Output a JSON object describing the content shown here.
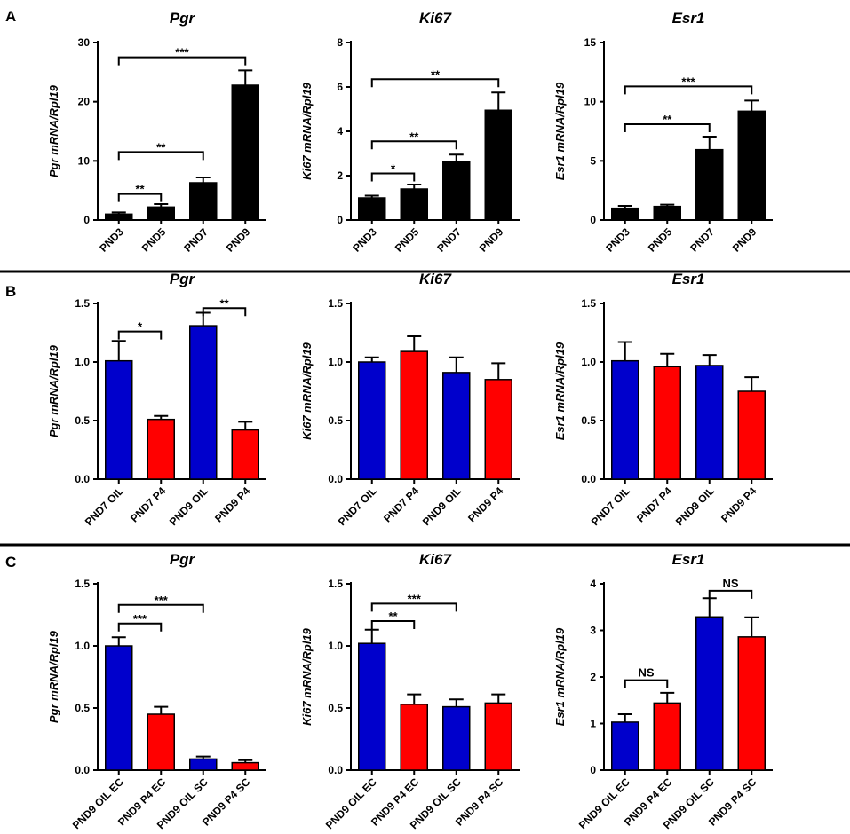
{
  "panels": [
    {
      "id": "A",
      "label": "A"
    },
    {
      "id": "B",
      "label": "B"
    },
    {
      "id": "C",
      "label": "C"
    }
  ],
  "chart_data": [
    {
      "type": "bar",
      "panel": "A",
      "title": "Pgr",
      "ylabel": "Pgr mRNA/Rpl19",
      "ylim": [
        0,
        30
      ],
      "yticks": [
        0,
        10,
        20,
        30
      ],
      "categories": [
        "PND3",
        "PND5",
        "PND7",
        "PND9"
      ],
      "values": [
        1.0,
        2.2,
        6.3,
        22.8
      ],
      "errors": [
        0.3,
        0.5,
        0.9,
        2.5
      ],
      "colors": [
        "#000000",
        "#000000",
        "#000000",
        "#000000"
      ],
      "significance": [
        {
          "from": 0,
          "to": 1,
          "label": "**",
          "y": 4.4
        },
        {
          "from": 0,
          "to": 2,
          "label": "**",
          "y": 11.5
        },
        {
          "from": 0,
          "to": 3,
          "label": "***",
          "y": 27.5
        }
      ]
    },
    {
      "type": "bar",
      "panel": "A",
      "title": "Ki67",
      "ylabel": "Ki67 mRNA/Rpl19",
      "ylim": [
        0,
        8
      ],
      "yticks": [
        0,
        2,
        4,
        6,
        8
      ],
      "categories": [
        "PND3",
        "PND5",
        "PND7",
        "PND9"
      ],
      "values": [
        1.0,
        1.4,
        2.65,
        4.95
      ],
      "errors": [
        0.1,
        0.2,
        0.3,
        0.8
      ],
      "colors": [
        "#000000",
        "#000000",
        "#000000",
        "#000000"
      ],
      "significance": [
        {
          "from": 0,
          "to": 1,
          "label": "*",
          "y": 2.1
        },
        {
          "from": 0,
          "to": 2,
          "label": "**",
          "y": 3.55
        },
        {
          "from": 0,
          "to": 3,
          "label": "**",
          "y": 6.35
        }
      ]
    },
    {
      "type": "bar",
      "panel": "A",
      "title": "Esr1",
      "ylabel": "Esr1 mRNA/Rpl19",
      "ylim": [
        0,
        15
      ],
      "yticks": [
        0,
        5,
        10,
        15
      ],
      "categories": [
        "PND3",
        "PND5",
        "PND7",
        "PND9"
      ],
      "values": [
        1.0,
        1.15,
        5.95,
        9.2
      ],
      "errors": [
        0.2,
        0.15,
        1.1,
        0.9
      ],
      "colors": [
        "#000000",
        "#000000",
        "#000000",
        "#000000"
      ],
      "significance": [
        {
          "from": 0,
          "to": 2,
          "label": "**",
          "y": 8.1
        },
        {
          "from": 0,
          "to": 3,
          "label": "***",
          "y": 11.3
        }
      ]
    },
    {
      "type": "bar",
      "panel": "B",
      "title": "Pgr",
      "ylabel": "Pgr mRNA/Rpl19",
      "ylim": [
        0,
        1.5
      ],
      "yticks": [
        0.0,
        0.5,
        1.0,
        1.5
      ],
      "categories": [
        "PND7 OIL",
        "PND7 P4",
        "PND9 OIL",
        "PND9 P4"
      ],
      "values": [
        1.01,
        0.51,
        1.31,
        0.42
      ],
      "errors": [
        0.17,
        0.03,
        0.11,
        0.07
      ],
      "colors": [
        "#0000cc",
        "#ff0000",
        "#0000cc",
        "#ff0000"
      ],
      "significance": [
        {
          "from": 0,
          "to": 1,
          "label": "*",
          "y": 1.26
        },
        {
          "from": 2,
          "to": 3,
          "label": "**",
          "y": 1.46
        }
      ]
    },
    {
      "type": "bar",
      "panel": "B",
      "title": "Ki67",
      "ylabel": "Ki67 mRNA/Rpl19",
      "ylim": [
        0,
        1.5
      ],
      "yticks": [
        0.0,
        0.5,
        1.0,
        1.5
      ],
      "categories": [
        "PND7 OIL",
        "PND7 P4",
        "PND9 OIL",
        "PND9 P4"
      ],
      "values": [
        1.0,
        1.09,
        0.91,
        0.85
      ],
      "errors": [
        0.04,
        0.13,
        0.13,
        0.14
      ],
      "colors": [
        "#0000cc",
        "#ff0000",
        "#0000cc",
        "#ff0000"
      ],
      "significance": []
    },
    {
      "type": "bar",
      "panel": "B",
      "title": "Esr1",
      "ylabel": "Esr1 mRNA/Rpl19",
      "ylim": [
        0,
        1.5
      ],
      "yticks": [
        0.0,
        0.5,
        1.0,
        1.5
      ],
      "categories": [
        "PND7 OIL",
        "PND7 P4",
        "PND9 OIL",
        "PND9 P4"
      ],
      "values": [
        1.01,
        0.96,
        0.97,
        0.75
      ],
      "errors": [
        0.16,
        0.11,
        0.09,
        0.12
      ],
      "colors": [
        "#0000cc",
        "#ff0000",
        "#0000cc",
        "#ff0000"
      ],
      "significance": []
    },
    {
      "type": "bar",
      "panel": "C",
      "title": "Pgr",
      "ylabel": "Pgr mRNA/Rpl19",
      "ylim": [
        0,
        1.5
      ],
      "yticks": [
        0.0,
        0.5,
        1.0,
        1.5
      ],
      "categories": [
        "PND9 OIL EC",
        "PND9 P4 EC",
        "PND9 OIL SC",
        "PND9 P4 SC"
      ],
      "values": [
        1.0,
        0.45,
        0.09,
        0.06
      ],
      "errors": [
        0.07,
        0.06,
        0.02,
        0.02
      ],
      "colors": [
        "#0000cc",
        "#ff0000",
        "#0000cc",
        "#ff0000"
      ],
      "significance": [
        {
          "from": 0,
          "to": 1,
          "label": "***",
          "y": 1.18
        },
        {
          "from": 0,
          "to": 2,
          "label": "***",
          "y": 1.33
        }
      ]
    },
    {
      "type": "bar",
      "panel": "C",
      "title": "Ki67",
      "ylabel": "Ki67 mRNA/Rpl19",
      "ylim": [
        0,
        1.5
      ],
      "yticks": [
        0.0,
        0.5,
        1.0,
        1.5
      ],
      "categories": [
        "PND9 OIL EC",
        "PND9 P4 EC",
        "PND9 OIL SC",
        "PND9 P4 SC"
      ],
      "values": [
        1.02,
        0.53,
        0.51,
        0.54
      ],
      "errors": [
        0.11,
        0.08,
        0.06,
        0.07
      ],
      "colors": [
        "#0000cc",
        "#ff0000",
        "#0000cc",
        "#ff0000"
      ],
      "significance": [
        {
          "from": 0,
          "to": 1,
          "label": "**",
          "y": 1.2
        },
        {
          "from": 0,
          "to": 2,
          "label": "***",
          "y": 1.34
        }
      ]
    },
    {
      "type": "bar",
      "panel": "C",
      "title": "Esr1",
      "ylabel": "Esr1 mRNA/Rpl19",
      "ylim": [
        0,
        4
      ],
      "yticks": [
        0,
        1,
        2,
        3,
        4
      ],
      "categories": [
        "PND9 OIL EC",
        "PND9 P4 EC",
        "PND9 OIL SC",
        "PND9 P4 SC"
      ],
      "values": [
        1.03,
        1.44,
        3.29,
        2.86
      ],
      "errors": [
        0.17,
        0.22,
        0.4,
        0.42
      ],
      "colors": [
        "#0000cc",
        "#ff0000",
        "#0000cc",
        "#ff0000"
      ],
      "significance": [
        {
          "from": 0,
          "to": 1,
          "label": "NS",
          "y": 1.93
        },
        {
          "from": 2,
          "to": 3,
          "label": "NS",
          "y": 3.85
        }
      ]
    }
  ]
}
